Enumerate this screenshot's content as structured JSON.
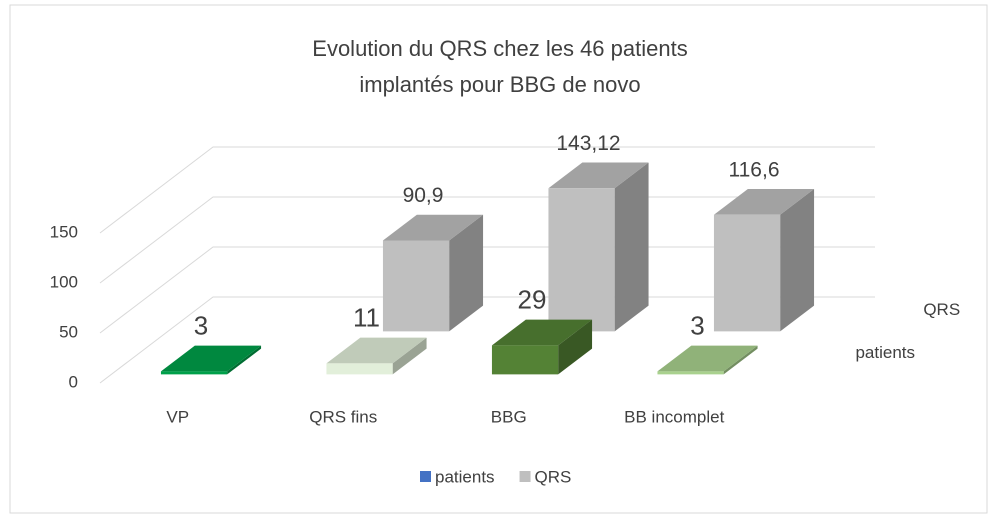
{
  "chart_data": {
    "type": "bar3d",
    "title": [
      "Evolution du QRS chez les 46 patients",
      "implantés pour BBG de novo"
    ],
    "categories": [
      "VP",
      "QRS fins",
      "BBG",
      "BB incomplet"
    ],
    "series": [
      {
        "name": "patients",
        "color": "#4472c4",
        "point_colors": [
          "#00a04a",
          "#e2efda",
          "#548235",
          "#a9d18e"
        ],
        "values": [
          3,
          11,
          29,
          3
        ]
      },
      {
        "name": "QRS",
        "color": "#bfbfbf",
        "values": [
          null,
          90.9,
          143.12,
          116.6
        ],
        "value_labels": [
          null,
          "90,9",
          "143,12",
          "116,6"
        ]
      }
    ],
    "ylim": [
      0,
      150
    ],
    "yticks": [
      0,
      50,
      100,
      150
    ],
    "grid": true,
    "legend": "bottom"
  }
}
